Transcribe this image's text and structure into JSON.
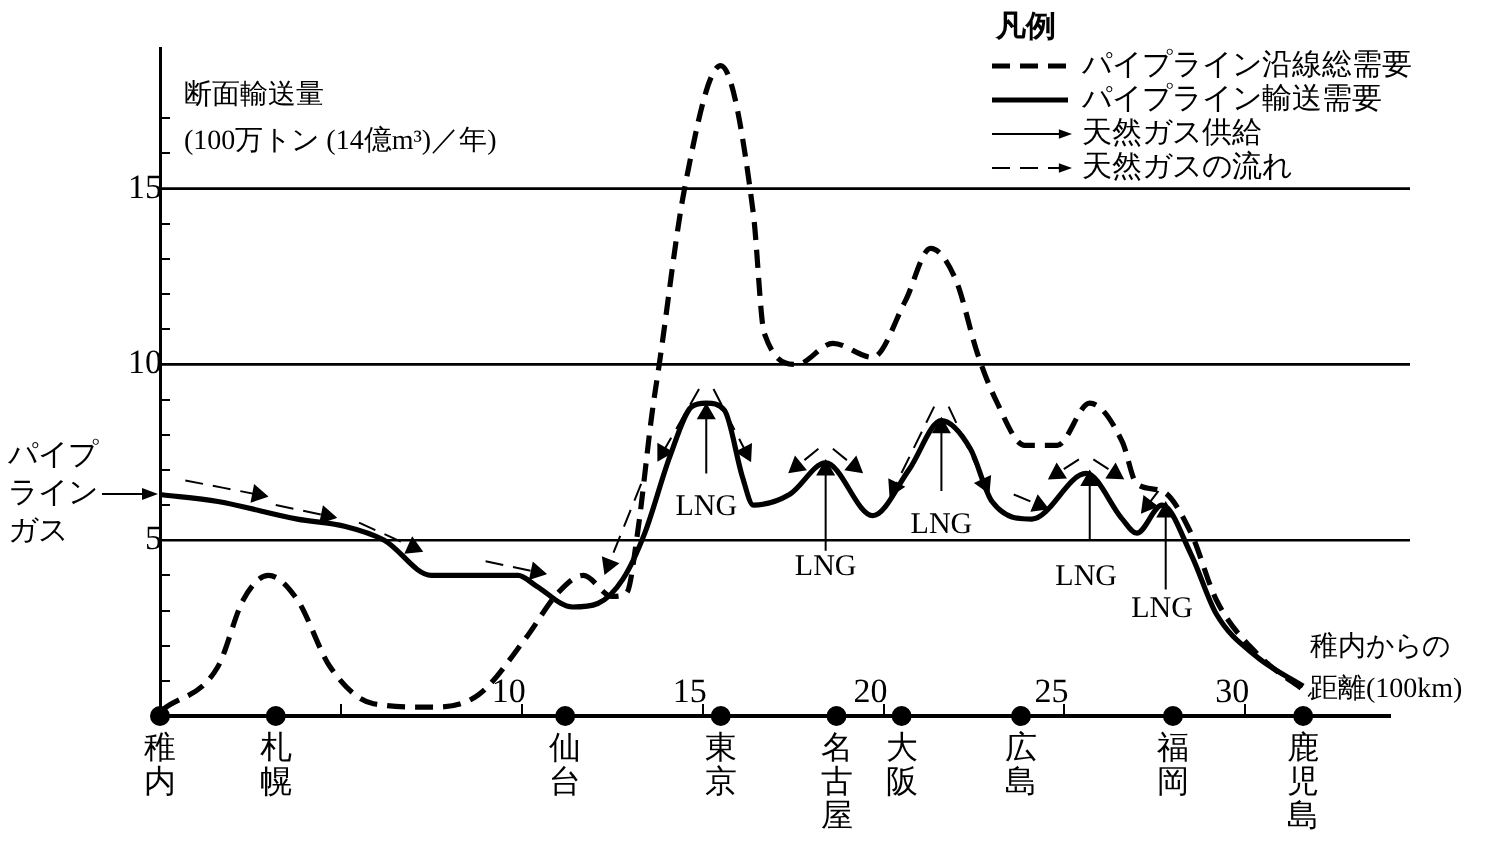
{
  "chart_data": {
    "type": "line",
    "ylabel": "断面輸送量\n(100万トン (14億m³)／年)",
    "xlabel": "稚内からの距離(100km)",
    "legend_title": "凡例",
    "legend": "top right",
    "grid": false,
    "xlim": [
      0,
      34
    ],
    "ylim": [
      0,
      19
    ],
    "xticks": [
      {
        "value": 5,
        "label": null
      },
      10,
      15,
      20,
      25,
      30
    ],
    "yticks": [
      {
        "value": 1,
        "label": null
      },
      {
        "value": 2,
        "label": null
      },
      {
        "value": 3,
        "label": null
      },
      {
        "value": 4,
        "label": null
      },
      5,
      {
        "value": 6,
        "label": null
      },
      {
        "value": 7,
        "label": null
      },
      {
        "value": 8,
        "label": null
      },
      {
        "value": 9,
        "label": null
      },
      10,
      {
        "value": 11,
        "label": null
      },
      {
        "value": 12,
        "label": null
      },
      {
        "value": 13,
        "label": null
      },
      {
        "value": 14,
        "label": null
      },
      15,
      {
        "value": 16,
        "label": null
      },
      {
        "value": 17,
        "label": null
      }
    ],
    "ref_lines": [
      {
        "axis": "y",
        "value": 5
      },
      {
        "axis": "y",
        "value": 10
      },
      {
        "axis": "y",
        "value": 15
      }
    ],
    "annotations": [
      {
        "text": "パイプラインガス",
        "x": 0,
        "y": 6.3
      },
      {
        "text": "LNG",
        "x": 15.1,
        "y": 8.9
      },
      {
        "text": "LNG",
        "x": 18.4,
        "y": 7.2
      },
      {
        "text": "LNG",
        "x": 21.6,
        "y": 8.4
      },
      {
        "text": "LNG",
        "x": 25.6,
        "y": 6.9
      },
      {
        "text": "LNG",
        "x": 27.7,
        "y": 6.0
      }
    ],
    "series": [
      {
        "name": "パイプライン沿線総需要",
        "line_style": "dashed",
        "color": "#000000",
        "x": [
          0.1,
          1.6,
          2.3,
          3.0,
          3.8,
          4.7,
          5.9,
          7.5,
          8.8,
          10.1,
          11.0,
          11.7,
          12.5,
          12.9,
          13.2,
          13.6,
          13.8,
          14.5,
          15.5,
          16.4,
          16.7,
          17.6,
          18.6,
          19.7,
          20.6,
          21.3,
          22.0,
          22.6,
          23.1,
          23.9,
          24.8,
          25.7,
          26.6,
          27.0,
          27.7,
          28.5,
          29.2,
          30.3,
          31.8
        ],
        "values": [
          0.2,
          1.4,
          3.3,
          4.0,
          3.3,
          1.4,
          0.35,
          0.25,
          0.6,
          2.2,
          3.5,
          4.0,
          3.4,
          3.5,
          5.2,
          8.6,
          10.0,
          15.0,
          18.5,
          14.3,
          10.9,
          10.0,
          10.6,
          10.2,
          11.8,
          13.3,
          12.4,
          10.3,
          9.0,
          7.7,
          7.7,
          8.9,
          7.8,
          6.6,
          6.4,
          5.2,
          3.3,
          1.8,
          0.6
        ]
      },
      {
        "name": "パイプライン輸送需要",
        "line_style": "solid",
        "color": "#000000",
        "x": [
          0,
          1.6,
          3.8,
          5.1,
          6.2,
          7.5,
          8.4,
          9.9,
          10.4,
          11.4,
          12.1,
          12.8,
          13.4,
          14.1,
          14.7,
          15.1,
          15.6,
          16.1,
          16.4,
          17.4,
          18.4,
          19.7,
          20.7,
          21.6,
          22.4,
          23.0,
          24.1,
          25.6,
          26.6,
          27.0,
          27.7,
          28.5,
          29.2,
          30.3,
          31.6
        ],
        "values": [
          6.3,
          6.1,
          5.6,
          5.4,
          5.0,
          4.0,
          4.0,
          4.0,
          3.7,
          3.1,
          3.2,
          3.9,
          5.2,
          7.4,
          8.8,
          8.9,
          8.7,
          6.8,
          6.0,
          6.3,
          7.2,
          5.7,
          7.0,
          8.4,
          7.6,
          6.1,
          5.6,
          6.9,
          5.6,
          5.2,
          6.0,
          4.6,
          2.9,
          1.7,
          0.85
        ]
      },
      {
        "name": "天然ガス供給",
        "type": "line",
        "line_style": "solid",
        "marker": "triangle",
        "color": "#000000",
        "x": [
          15.1,
          15.1,
          null,
          18.4,
          18.4,
          null,
          21.6,
          21.6,
          null,
          25.7,
          25.7,
          null,
          27.8,
          27.8
        ],
        "values": [
          6.9,
          8.6,
          null,
          4.7,
          7.0,
          null,
          6.4,
          8.2,
          null,
          5.0,
          6.7,
          null,
          3.6,
          5.8
        ]
      },
      {
        "name": "天然ガスの流れ",
        "type": "line",
        "line_style": "dashed",
        "marker": "triangle",
        "color": "#000000",
        "x": [
          0.7,
          2.7,
          null,
          3.2,
          4.6,
          null,
          5.5,
          7.0,
          null,
          9.0,
          10.4,
          null,
          13.3,
          12.4,
          null,
          14.9,
          13.9,
          null,
          15.3,
          16.2,
          null,
          18.2,
          17.6,
          null,
          18.6,
          19.2,
          null,
          21.4,
          20.3,
          null,
          21.8,
          22.8,
          null,
          23.6,
          24.3,
          null,
          25.4,
          24.8,
          null,
          25.8,
          26.4,
          null,
          27.6,
          27.3
        ],
        "values": [
          6.7,
          6.3,
          null,
          6.0,
          5.7,
          null,
          5.5,
          4.8,
          null,
          4.4,
          4.1,
          null,
          6.6,
          4.3,
          null,
          9.3,
          7.5,
          null,
          9.3,
          7.5,
          null,
          7.6,
          7.1,
          null,
          7.6,
          7.1,
          null,
          8.8,
          6.5,
          null,
          8.8,
          6.6,
          null,
          6.3,
          6.0,
          null,
          7.3,
          6.9,
          null,
          7.3,
          6.9,
          null,
          6.4,
          6.0
        ]
      },
      {
        "type": "scatter",
        "marker": "circle",
        "color": "#000000",
        "x": [
          0,
          3.2,
          11.2,
          15.5,
          18.7,
          20.5,
          23.8,
          28.0,
          31.6
        ],
        "values": [
          0,
          0,
          0,
          0,
          0,
          0,
          0,
          0,
          0
        ],
        "value_labels": [
          "稚内",
          "札幌",
          "仙台",
          "東京",
          "名古屋",
          "大阪",
          "広島",
          "福岡",
          "鹿児島"
        ]
      }
    ]
  }
}
